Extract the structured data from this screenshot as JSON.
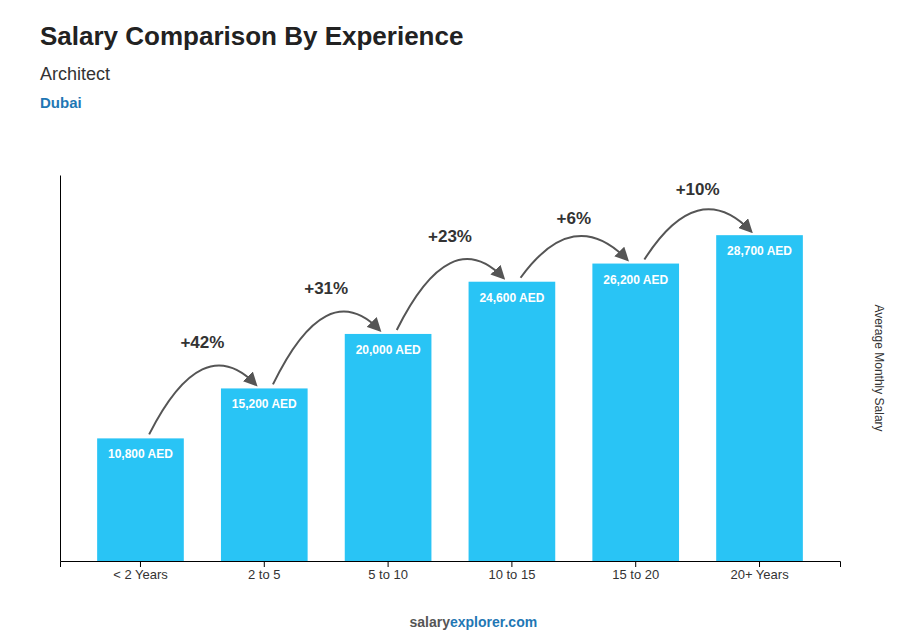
{
  "chart_data": {
    "type": "bar",
    "title": "Salary Comparison By Experience",
    "subtitle": "Architect",
    "city": "Dubai",
    "y_label": "Average Monthly Salary",
    "categories": [
      "< 2 Years",
      "2 to 5",
      "5 to 10",
      "10 to 15",
      "15 to 20",
      "20+ Years"
    ],
    "values": [
      10800,
      15200,
      20000,
      24600,
      26200,
      28700
    ],
    "value_labels": [
      "10,800 AED",
      "15,200 AED",
      "20,000 AED",
      "24,600 AED",
      "26,200 AED",
      "28,700 AED"
    ],
    "data_labels": true,
    "annotations": [
      "+42%",
      "+31%",
      "+23%",
      "+6%",
      "+10%"
    ],
    "watermark": [
      "salary",
      "explorer.com"
    ],
    "color": "#29c4f5",
    "ylim": [
      0,
      34000
    ],
    "grid": false,
    "tick_labels": "x"
  }
}
